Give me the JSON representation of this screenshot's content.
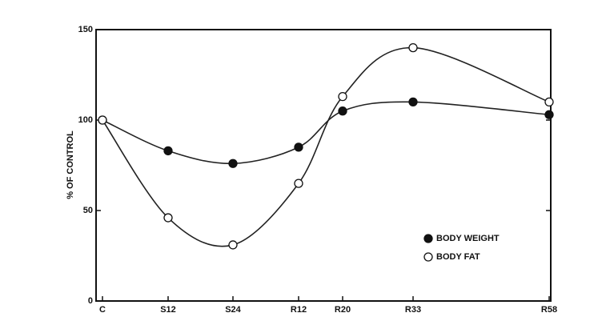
{
  "chart_data": {
    "type": "line",
    "y_label": "% OF CONTROL",
    "categories": [
      "C",
      "S12",
      "S24",
      "R12",
      "R20",
      "R33",
      "R58"
    ],
    "series": [
      {
        "name": "BODY WEIGHT",
        "color": "#111111",
        "marker_fill": "#111111",
        "values": [
          100,
          83,
          76,
          85,
          105,
          110,
          103
        ]
      },
      {
        "name": "BODY FAT",
        "color": "#111111",
        "marker_fill": "#ffffff",
        "values": [
          100,
          46,
          31,
          65,
          113,
          140,
          110
        ]
      }
    ],
    "ylim": [
      0,
      150
    ],
    "yticks": [
      0,
      50,
      100,
      150
    ],
    "legend": "lower right",
    "grid": false
  }
}
